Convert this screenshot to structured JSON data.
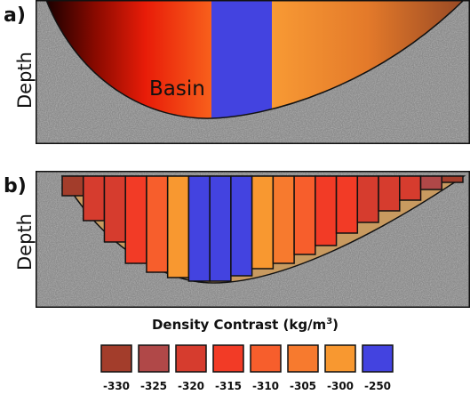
{
  "panel_a": {
    "label": "a)",
    "axis_label": "Depth",
    "basin_label": "Basin"
  },
  "panel_b": {
    "label": "b)",
    "axis_label": "Depth",
    "prisms": [
      -330,
      -320,
      -320,
      -315,
      -310,
      -300,
      -250,
      -250,
      -250,
      -300,
      -305,
      -310,
      -315,
      -315,
      -320,
      -320,
      -320,
      -325,
      -330
    ]
  },
  "legend": {
    "title": "Density Contrast (kg/m",
    "title_superscript": "3",
    "title_end": ")",
    "items": [
      {
        "value": -330,
        "color": "#a33d2b"
      },
      {
        "value": -325,
        "color": "#b04848"
      },
      {
        "value": -320,
        "color": "#d63c2e"
      },
      {
        "value": -315,
        "color": "#f23b26"
      },
      {
        "value": -310,
        "color": "#f75e2c"
      },
      {
        "value": -305,
        "color": "#f77a2e"
      },
      {
        "value": -300,
        "color": "#f89830"
      },
      {
        "value": -250,
        "color": "#4343e0"
      }
    ]
  }
}
